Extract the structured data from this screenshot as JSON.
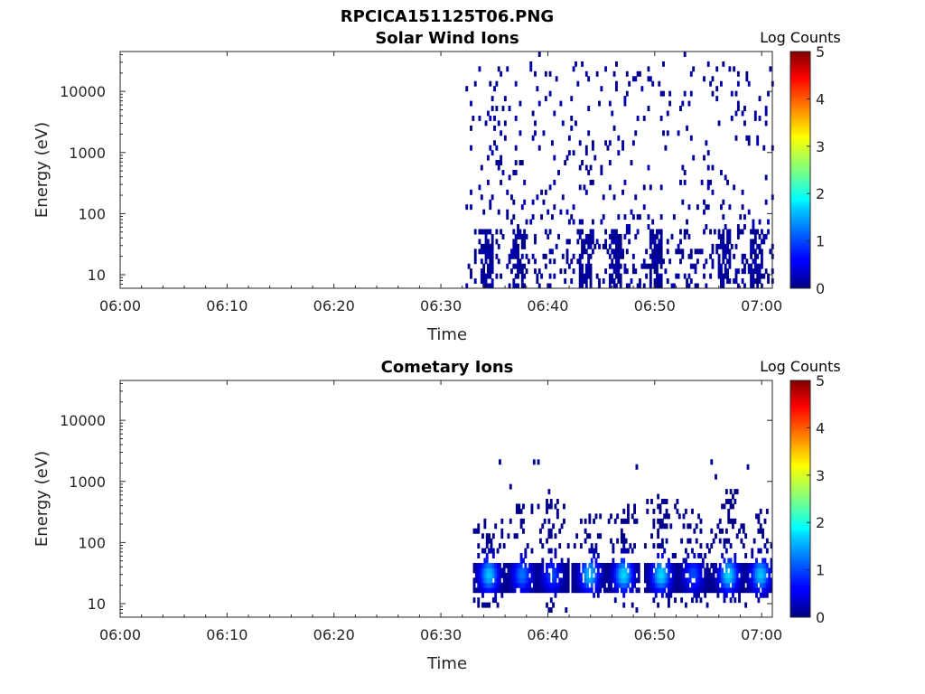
{
  "figure_title": "RPCICA151125T06.PNG",
  "chart_data": [
    {
      "type": "heatmap",
      "title": "Solar Wind Ions",
      "xlabel": "Time",
      "ylabel": "Energy (eV)",
      "colorbar_label": "Log Counts",
      "x_range_minutes": [
        0,
        61
      ],
      "ylim": [
        6,
        45000
      ],
      "yscale": "log",
      "xticks": [
        "06:00",
        "06:10",
        "06:20",
        "06:30",
        "06:40",
        "06:50",
        "07:00"
      ],
      "yticks": [
        "10",
        "100",
        "1000",
        "10000"
      ],
      "colorbar_ticks": [
        "0",
        "1",
        "2",
        "3",
        "4",
        "5"
      ],
      "clim": [
        0,
        5
      ],
      "data_start_minute": 32.3,
      "description_of_data": "Sparse low-count (≈0) hits from 06:32 onward across 10 eV–30 keV, denser band at 10–40 eV",
      "bursts": [
        {
          "minute": 34.2,
          "energy_low": 6,
          "energy_high": 60,
          "log_counts": 0.3
        },
        {
          "minute": 37.3,
          "energy_low": 6,
          "energy_high": 60,
          "log_counts": 0.3
        },
        {
          "minute": 43.5,
          "energy_low": 6,
          "energy_high": 60,
          "log_counts": 0.3
        },
        {
          "minute": 46.3,
          "energy_low": 6,
          "energy_high": 60,
          "log_counts": 0.3
        },
        {
          "minute": 50.0,
          "energy_low": 6,
          "energy_high": 60,
          "log_counts": 0.3
        },
        {
          "minute": 56.5,
          "energy_low": 6,
          "energy_high": 60,
          "log_counts": 0.3
        },
        {
          "minute": 59.5,
          "energy_low": 6,
          "energy_high": 60,
          "log_counts": 0.3
        }
      ]
    },
    {
      "type": "heatmap",
      "title": "Cometary Ions",
      "xlabel": "Time",
      "ylabel": "Energy (eV)",
      "colorbar_label": "Log Counts",
      "x_range_minutes": [
        0,
        61
      ],
      "ylim": [
        6,
        45000
      ],
      "yscale": "log",
      "xticks": [
        "06:00",
        "06:10",
        "06:20",
        "06:30",
        "06:40",
        "06:50",
        "07:00"
      ],
      "yticks": [
        "10",
        "100",
        "1000",
        "10000"
      ],
      "colorbar_ticks": [
        "0",
        "1",
        "2",
        "3",
        "4",
        "5"
      ],
      "clim": [
        0,
        5
      ],
      "data_start_minute": 33.0,
      "description_of_data": "Periodic bursts centred near 20–40 eV reaching ~1.7 log counts, with faint extensions up to ~500 eV",
      "bursts": [
        {
          "minute": 34.4,
          "energy_low": 8,
          "energy_high": 250,
          "log_counts": 1.6
        },
        {
          "minute": 37.5,
          "energy_low": 15,
          "energy_high": 400,
          "log_counts": 1.2
        },
        {
          "minute": 40.3,
          "energy_low": 7,
          "energy_high": 500,
          "log_counts": 1.0
        },
        {
          "minute": 43.8,
          "energy_low": 12,
          "energy_high": 300,
          "log_counts": 1.6
        },
        {
          "minute": 47.0,
          "energy_low": 7,
          "energy_high": 450,
          "log_counts": 1.7
        },
        {
          "minute": 50.5,
          "energy_low": 8,
          "energy_high": 500,
          "log_counts": 1.7
        },
        {
          "minute": 53.5,
          "energy_low": 8,
          "energy_high": 350,
          "log_counts": 1.0
        },
        {
          "minute": 56.8,
          "energy_low": 10,
          "energy_high": 800,
          "log_counts": 1.7
        },
        {
          "minute": 59.8,
          "energy_low": 8,
          "energy_high": 350,
          "log_counts": 1.6
        }
      ]
    }
  ]
}
